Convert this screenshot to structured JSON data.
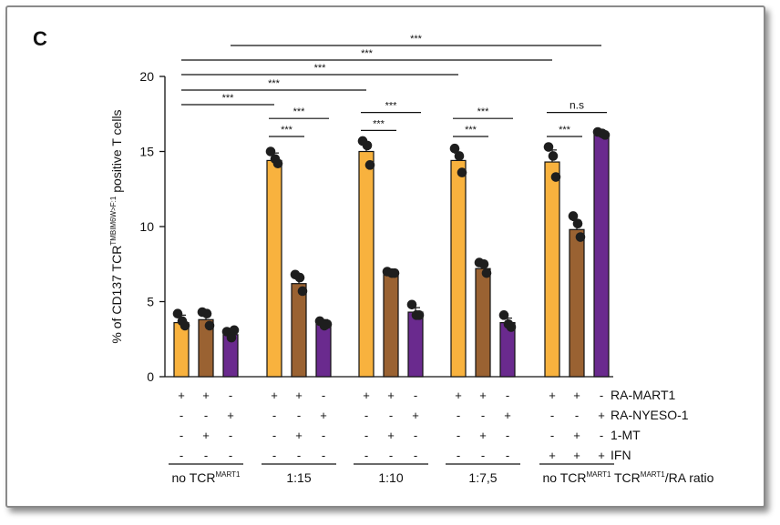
{
  "panel_label": "C",
  "chart_data": {
    "type": "bar",
    "ylabel_prefix": "% of CD137 TCR",
    "ylabel_sup": "TMBIM6W>F:1",
    "ylabel_suffix": " positive T cells",
    "ylim": [
      0,
      20
    ],
    "yticks": [
      0,
      5,
      10,
      15,
      20
    ],
    "colors": {
      "RA-MART1": "#f8b23e",
      "1-MT": "#9a6232",
      "RA-NYESO-1": "#6a2a8e",
      "dot": "#1e1e1e"
    },
    "groups": [
      {
        "name": "no TCRMART1",
        "label": "no TCR",
        "sup": "MART1",
        "bars": [
          {
            "series": "RA-MART1",
            "value": 3.6,
            "error": 0.5,
            "points": [
              4.2,
              3.7,
              3.4
            ]
          },
          {
            "series": "1-MT",
            "value": 3.8,
            "error": 0.4,
            "points": [
              4.3,
              4.2,
              3.4
            ]
          },
          {
            "series": "RA-NYESO-1",
            "value": 2.8,
            "error": 0.3,
            "points": [
              3.0,
              2.6,
              3.1
            ]
          }
        ]
      },
      {
        "name": "1:15",
        "label": "1:15",
        "sup": "",
        "bars": [
          {
            "series": "RA-MART1",
            "value": 14.4,
            "error": 0.5,
            "points": [
              15.0,
              14.5,
              14.2
            ]
          },
          {
            "series": "1-MT",
            "value": 6.2,
            "error": 0.5,
            "points": [
              6.8,
              6.6,
              5.7
            ]
          },
          {
            "series": "RA-NYESO-1",
            "value": 3.5,
            "error": 0.3,
            "points": [
              3.7,
              3.4,
              3.5
            ]
          }
        ]
      },
      {
        "name": "1:10",
        "label": "1:10",
        "sup": "",
        "bars": [
          {
            "series": "RA-MART1",
            "value": 15.0,
            "error": 0.6,
            "points": [
              15.7,
              15.4,
              14.1
            ]
          },
          {
            "series": "1-MT",
            "value": 6.9,
            "error": 0.1,
            "points": [
              7.0,
              6.9,
              6.9
            ]
          },
          {
            "series": "RA-NYESO-1",
            "value": 4.3,
            "error": 0.3,
            "points": [
              4.8,
              4.1,
              4.1
            ]
          }
        ]
      },
      {
        "name": "1:7,5",
        "label": "1:7,5",
        "sup": "",
        "bars": [
          {
            "series": "RA-MART1",
            "value": 14.4,
            "error": 0.5,
            "points": [
              15.2,
              14.7,
              13.6
            ]
          },
          {
            "series": "1-MT",
            "value": 7.2,
            "error": 0.4,
            "points": [
              7.6,
              7.5,
              6.9
            ]
          },
          {
            "series": "RA-NYESO-1",
            "value": 3.6,
            "error": 0.3,
            "points": [
              4.1,
              3.5,
              3.3
            ]
          }
        ]
      },
      {
        "name": "no TCRMART1 IFN",
        "label": "no TCR",
        "sup": "MART1",
        "bars": [
          {
            "series": "RA-MART1",
            "value": 14.3,
            "error": 0.8,
            "points": [
              15.3,
              14.7,
              13.3
            ]
          },
          {
            "series": "1-MT",
            "value": 9.8,
            "error": 0.6,
            "points": [
              10.7,
              10.2,
              9.3
            ]
          },
          {
            "series": "RA-NYESO-1",
            "value": 16.2,
            "error": 0.1,
            "points": [
              16.3,
              16.2,
              16.1
            ]
          }
        ]
      }
    ],
    "significance": [
      {
        "label": "***",
        "from": [
          0,
          0
        ],
        "to": [
          1,
          0
        ],
        "level": 0
      },
      {
        "label": "***",
        "from": [
          0,
          0
        ],
        "to": [
          2,
          0
        ],
        "level": 1
      },
      {
        "label": "***",
        "from": [
          0,
          0
        ],
        "to": [
          3,
          0
        ],
        "level": 2
      },
      {
        "label": "***",
        "from": [
          0,
          0
        ],
        "to": [
          4,
          0
        ],
        "level": 3
      },
      {
        "label": "***",
        "from": [
          0,
          2
        ],
        "to": [
          4,
          2
        ],
        "level": 4
      },
      {
        "label": "***",
        "from": [
          1,
          0
        ],
        "to": [
          1,
          1
        ],
        "y": 16.0
      },
      {
        "label": "***",
        "from": [
          1,
          0
        ],
        "to": [
          1,
          2
        ],
        "y": 17.2
      },
      {
        "label": "***",
        "from": [
          2,
          0
        ],
        "to": [
          2,
          1
        ],
        "y": 16.4
      },
      {
        "label": "***",
        "from": [
          2,
          0
        ],
        "to": [
          2,
          2
        ],
        "y": 17.6
      },
      {
        "label": "***",
        "from": [
          3,
          0
        ],
        "to": [
          3,
          1
        ],
        "y": 16.0
      },
      {
        "label": "***",
        "from": [
          3,
          0
        ],
        "to": [
          3,
          2
        ],
        "y": 17.2
      },
      {
        "label": "***",
        "from": [
          4,
          0
        ],
        "to": [
          4,
          1
        ],
        "y": 16.0
      },
      {
        "label": "n.s",
        "from": [
          4,
          0
        ],
        "to": [
          4,
          2
        ],
        "y": 17.6
      }
    ],
    "condition_rows": [
      {
        "name": "RA-MART1",
        "signs": [
          "+",
          "+",
          "-",
          "+",
          "+",
          "-",
          "+",
          "+",
          "-",
          "+",
          "+",
          "-",
          "+",
          "+",
          "-"
        ]
      },
      {
        "name": "RA-NYESO-1",
        "signs": [
          "-",
          "-",
          "+",
          "-",
          "-",
          "+",
          "-",
          "-",
          "+",
          "-",
          "-",
          "+",
          "-",
          "-",
          "+"
        ]
      },
      {
        "name": "1-MT",
        "signs": [
          "-",
          "+",
          "-",
          "-",
          "+",
          "-",
          "-",
          "+",
          "-",
          "-",
          "+",
          "-",
          "-",
          "+",
          "-"
        ]
      },
      {
        "name": "IFN",
        "signs": [
          "-",
          "-",
          "-",
          "-",
          "-",
          "-",
          "-",
          "-",
          "-",
          "-",
          "-",
          "-",
          "+",
          "+",
          "+"
        ]
      }
    ],
    "xlabel_prefix": "TCR",
    "xlabel_sup": "MART1",
    "xlabel_suffix": "/RA ratio"
  }
}
